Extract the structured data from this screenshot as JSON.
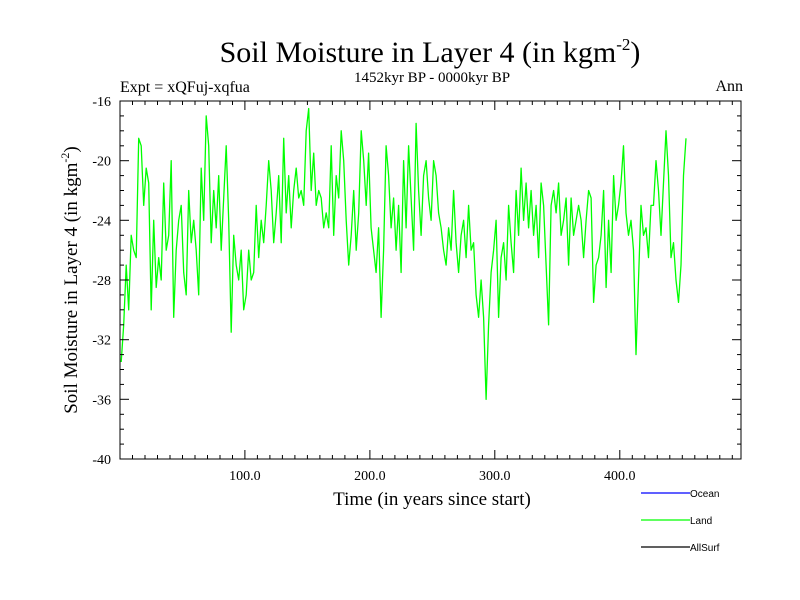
{
  "chart_data": {
    "type": "line",
    "title": "Soil Moisture in Layer 4 (in kgm",
    "title_superscript": "-2",
    "title_close": ")",
    "subtitle_left": "Expt = xQFuj-xqfua",
    "subtitle_center": "1452kyr BP - 0000kyr BP",
    "subtitle_right": "Ann",
    "xlabel": "Time (in years since start)",
    "ylabel": "Soil Moisture in Layer 4 (in kgm",
    "ylabel_superscript": "-2",
    "ylabel_close": ")",
    "xlim": [
      0,
      497
    ],
    "ylim": [
      -40,
      -16
    ],
    "x_ticks": [
      100,
      200,
      300,
      400
    ],
    "x_tick_labels": [
      "100.0",
      "200.0",
      "300.0",
      "400.0"
    ],
    "y_ticks": [
      -40,
      -36,
      -32,
      -28,
      -24,
      -20,
      -16
    ],
    "y_tick_labels": [
      "-40",
      "-36",
      "-32",
      "-28",
      "-24",
      "-20",
      "-16"
    ],
    "series": [
      {
        "name": "Ocean",
        "color": "#0000ff",
        "values": []
      },
      {
        "name": "Land",
        "color": "#00ff00",
        "x_start": 1,
        "x_step": 2,
        "values": [
          -33.5,
          -31,
          -27,
          -30,
          -25,
          -26,
          -26.5,
          -18.5,
          -19,
          -23,
          -20.5,
          -21.5,
          -30,
          -24,
          -28.5,
          -26.5,
          -28,
          -21.5,
          -26,
          -25,
          -20,
          -30.5,
          -26,
          -24,
          -23,
          -27.5,
          -29,
          -22,
          -25.5,
          -24,
          -26,
          -29,
          -20.5,
          -24,
          -17,
          -19,
          -25.5,
          -22,
          -24.5,
          -21,
          -26,
          -22.5,
          -19,
          -24,
          -31.5,
          -25,
          -27,
          -28,
          -26,
          -30,
          -29,
          -26,
          -28,
          -27.5,
          -23,
          -26.5,
          -24,
          -25.5,
          -23,
          -20,
          -22,
          -25.5,
          -23.5,
          -21,
          -25.5,
          -18.5,
          -23.5,
          -21,
          -24.5,
          -22,
          -20.5,
          -22.5,
          -22,
          -23,
          -18,
          -16.5,
          -22,
          -19.5,
          -23,
          -22,
          -22.5,
          -24.5,
          -23.5,
          -24.5,
          -19,
          -25,
          -21,
          -22.5,
          -18,
          -20,
          -24,
          -27,
          -25,
          -22,
          -26,
          -23.5,
          -18,
          -20,
          -23,
          -19.5,
          -24.5,
          -26,
          -27.5,
          -24.5,
          -30.5,
          -26,
          -19,
          -21,
          -24.5,
          -22.5,
          -26,
          -23,
          -27.5,
          -20,
          -24.5,
          -19,
          -22.5,
          -26,
          -17.5,
          -22,
          -25,
          -21,
          -20,
          -22.5,
          -24,
          -20,
          -21,
          -23.5,
          -24.5,
          -26,
          -27,
          -24.5,
          -26,
          -22,
          -25.5,
          -27.5,
          -25,
          -24,
          -26.5,
          -23,
          -26,
          -25.5,
          -29,
          -30.5,
          -28,
          -30.5,
          -36,
          -31,
          -27.5,
          -26,
          -24,
          -30.5,
          -26.5,
          -25.5,
          -28,
          -23,
          -25.5,
          -27.5,
          -22,
          -25,
          -20.5,
          -24,
          -21.5,
          -24.5,
          -22,
          -25,
          -23,
          -26.5,
          -21.5,
          -23,
          -27,
          -31,
          -23,
          -22,
          -23.5,
          -21.5,
          -25,
          -24,
          -22.5,
          -27,
          -22.5,
          -25,
          -24,
          -23,
          -24,
          -26.5,
          -24,
          -22,
          -22.5,
          -29.5,
          -27,
          -26.5,
          -25,
          -22,
          -28.5,
          -24,
          -27.5,
          -21,
          -24,
          -23,
          -21.5,
          -19,
          -23.5,
          -25,
          -24,
          -26,
          -33,
          -28,
          -23,
          -25,
          -24.5,
          -26.5,
          -23,
          -23,
          -20,
          -22,
          -25,
          -21.5,
          -18,
          -21,
          -26.5,
          -25.5,
          -28,
          -29.5,
          -27,
          -21,
          -18.5
        ]
      },
      {
        "name": "AllSurf",
        "color": "#000000",
        "values": []
      }
    ],
    "legend_position": "bottom-right",
    "grid": false
  }
}
